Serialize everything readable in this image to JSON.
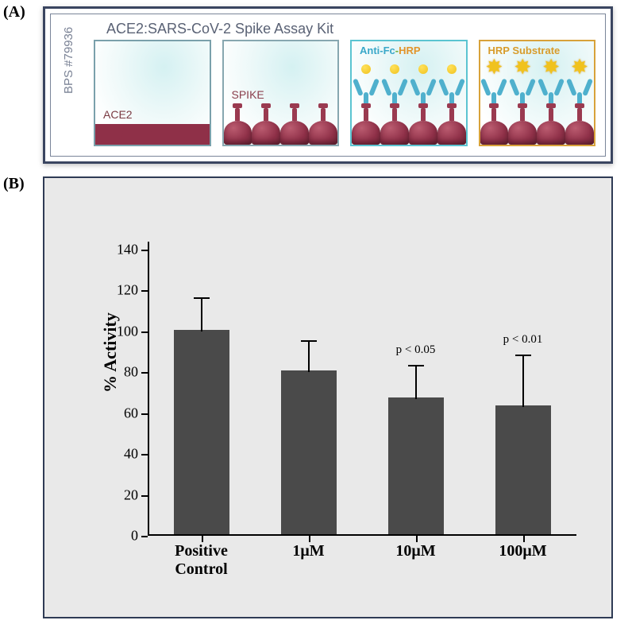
{
  "labels": {
    "A": "(A)",
    "B": "(B)"
  },
  "panelA": {
    "title": "ACE2:SARS-CoV-2 Spike Assay Kit",
    "bps": "BPS #79936",
    "stage_labels": {
      "ace2": "ACE2",
      "spike": "SPIKE",
      "anti_blue": "Anti-Fc",
      "anti_dash": "-",
      "anti_or": "HRP",
      "hrp_sub": "HRP Substrate"
    },
    "colors": {
      "border1": "#7aa0ab",
      "border2": "#87a7b0",
      "border3": "#5bc4d1",
      "border4": "#d8a23a",
      "sphere": "#8f3048",
      "yshape": "#4fb0cd",
      "dot": "#f0c21e"
    }
  },
  "panelB": {
    "type": "bar",
    "ylabel": "% Activity",
    "ylim": [
      0,
      140
    ],
    "ytick_step": 20,
    "categories": [
      "Positive\nControl",
      "1μM",
      "10μM",
      "100μM"
    ],
    "cat_labels": {
      "c0a": "Positive",
      "c0b": "Control",
      "c1": "1μM",
      "c2": "10μM",
      "c3": "100μM"
    },
    "values": [
      100,
      80,
      67,
      63
    ],
    "errors": [
      16,
      15,
      16,
      25
    ],
    "bar_color": "#4a4a4a",
    "background_color": "#e9e9e9",
    "pvals": {
      "p2": "p < 0.05",
      "p3": "p < 0.01"
    },
    "yticks": {
      "t0": "0",
      "t20": "20",
      "t40": "40",
      "t60": "60",
      "t80": "80",
      "t100": "100",
      "t120": "120",
      "t140": "140"
    },
    "axis_fontsize": 18,
    "label_fontsize": 22
  }
}
